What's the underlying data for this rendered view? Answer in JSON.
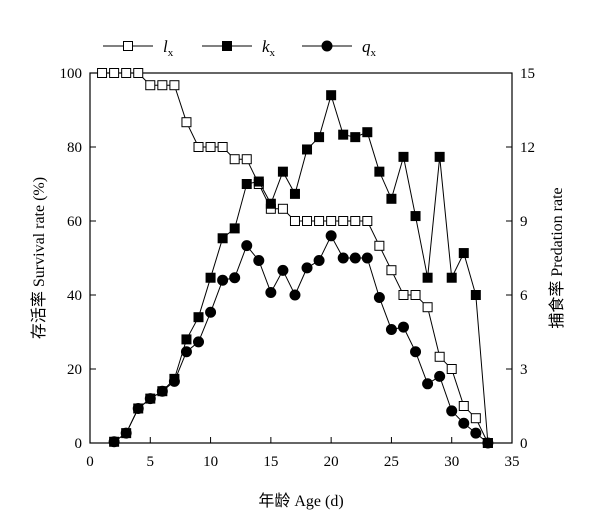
{
  "chart_data": {
    "type": "line",
    "xlabel": "年龄 Age (d)",
    "ylabel_left": "存活率 Survival rate (%)",
    "ylabel_right": "捕食率 Predation rate",
    "xlim": [
      0,
      35
    ],
    "ylim_left": [
      0,
      100
    ],
    "ylim_right": [
      0,
      15
    ],
    "x_ticks": [
      0,
      5,
      10,
      15,
      20,
      25,
      30,
      35
    ],
    "y_ticks_left": [
      0,
      20,
      40,
      60,
      80,
      100
    ],
    "y_ticks_right": [
      0,
      3,
      6,
      9,
      12,
      15
    ],
    "grid": false,
    "legend_position": "top",
    "series": [
      {
        "name": "l",
        "name_sub": "x",
        "axis": "left",
        "marker": "open-square",
        "x": [
          1,
          2,
          3,
          4,
          5,
          6,
          7,
          8,
          9,
          10,
          11,
          12,
          13,
          14,
          15,
          16,
          17,
          18,
          19,
          20,
          21,
          22,
          23,
          24,
          25,
          26,
          27,
          28,
          29,
          30,
          31,
          32,
          33
        ],
        "values": [
          100,
          100,
          100,
          100,
          96.7,
          96.7,
          96.7,
          86.7,
          80,
          80,
          80,
          76.7,
          76.7,
          70,
          63.3,
          63.3,
          60,
          60,
          60,
          60,
          60,
          60,
          60,
          53.3,
          46.7,
          40,
          40,
          36.7,
          23.3,
          20,
          10,
          6.7,
          0
        ]
      },
      {
        "name": "k",
        "name_sub": "x",
        "axis": "right",
        "marker": "filled-square",
        "x": [
          2,
          3,
          4,
          5,
          6,
          7,
          8,
          9,
          10,
          11,
          12,
          13,
          14,
          15,
          16,
          17,
          18,
          19,
          20,
          21,
          22,
          23,
          24,
          25,
          26,
          27,
          28,
          29,
          30,
          31,
          32,
          33
        ],
        "values": [
          0.05,
          0.4,
          1.4,
          1.8,
          2.1,
          2.6,
          4.2,
          5.1,
          6.7,
          8.3,
          8.7,
          10.5,
          10.6,
          9.7,
          11.0,
          10.1,
          11.9,
          12.4,
          14.1,
          12.5,
          12.4,
          12.6,
          11.0,
          9.9,
          11.6,
          9.2,
          6.7,
          11.6,
          6.7,
          7.7,
          6.0,
          0
        ]
      },
      {
        "name": "q",
        "name_sub": "x",
        "axis": "right",
        "marker": "filled-circle",
        "x": [
          2,
          3,
          4,
          5,
          6,
          7,
          8,
          9,
          10,
          11,
          12,
          13,
          14,
          15,
          16,
          17,
          18,
          19,
          20,
          21,
          22,
          23,
          24,
          25,
          26,
          27,
          28,
          29,
          30,
          31,
          32,
          33
        ],
        "values": [
          0.05,
          0.4,
          1.4,
          1.8,
          2.1,
          2.5,
          3.7,
          4.1,
          5.3,
          6.6,
          6.7,
          8.0,
          7.4,
          6.1,
          7.0,
          6.0,
          7.1,
          7.4,
          8.4,
          7.5,
          7.5,
          7.5,
          5.9,
          4.6,
          4.7,
          3.7,
          2.4,
          2.7,
          1.3,
          0.8,
          0.4,
          0
        ]
      }
    ]
  }
}
